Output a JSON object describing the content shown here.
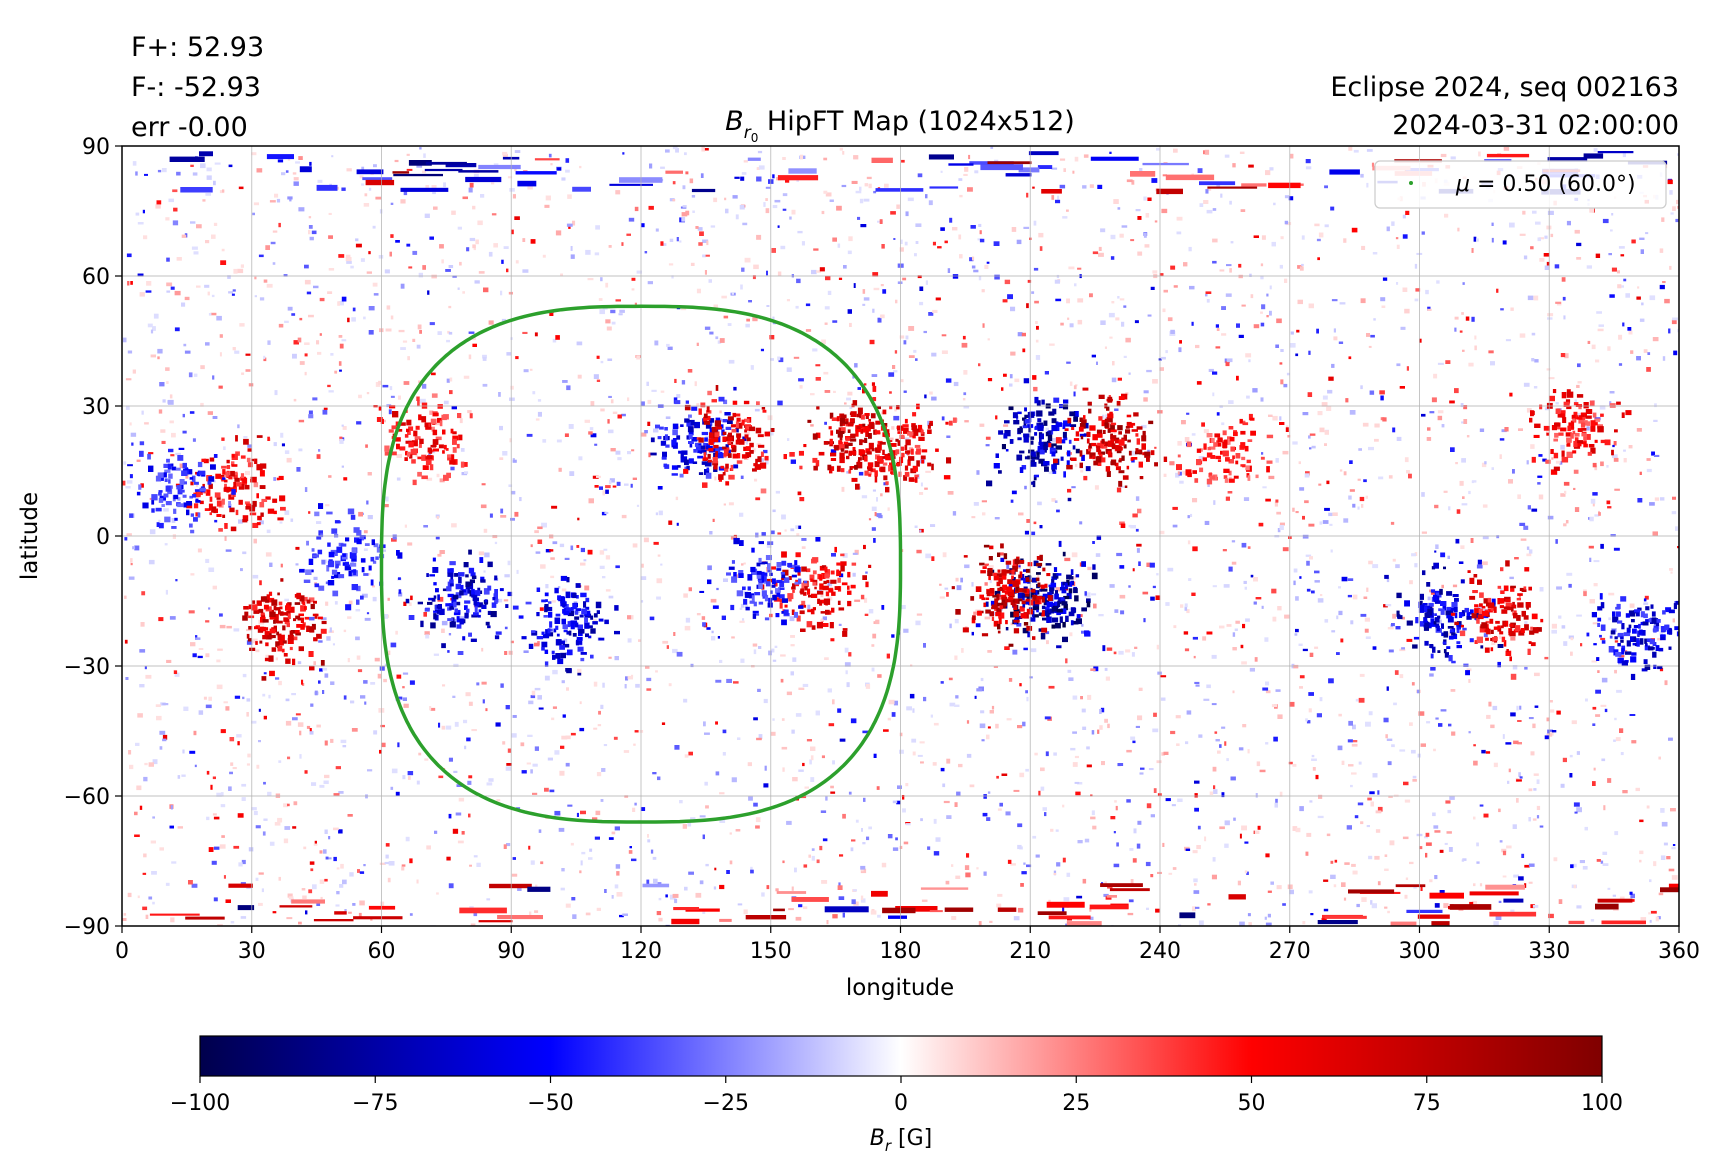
{
  "header": {
    "flux_pos": "F+: 52.93",
    "flux_neg": "F-: -52.93",
    "error": "err -0.00",
    "event": "Eclipse 2024, seq 002163",
    "timestamp": "2024-03-31 02:00:00"
  },
  "chart_data": {
    "type": "heatmap",
    "title": {
      "symbol": "B",
      "subscript": "r",
      "subsubscript": "0",
      "text": " HipFT Map (1024x512)"
    },
    "xlabel": "longitude",
    "ylabel": "latitude",
    "xlim": [
      0,
      360
    ],
    "ylim": [
      -90,
      90
    ],
    "x_ticks": [
      0,
      30,
      60,
      90,
      120,
      150,
      180,
      210,
      240,
      270,
      300,
      330,
      360
    ],
    "y_ticks": [
      90,
      60,
      30,
      0,
      -30,
      -60,
      -90
    ],
    "y_tick_labels": [
      "90",
      "60",
      "30",
      "0",
      "−30",
      "−60",
      "−90"
    ],
    "grid": true,
    "colormap": "seismic",
    "colormap_stops": [
      "#00004c",
      "#0000ff",
      "#ffffff",
      "#ff0000",
      "#800000"
    ],
    "legend": {
      "placement": "top-right",
      "label_symbol": "μ",
      "label_text": " = 0.50 (60.0°)",
      "color": "#2ca02c"
    },
    "contour": {
      "name": "μ = 0.50 (60.0°)",
      "color": "#2ca02c",
      "lon_center": 120,
      "lat_center": -7,
      "lon_halfwidth": 60,
      "lat_top": 53,
      "lat_bottom": -66
    },
    "active_regions": [
      {
        "lon": 213,
        "lat": -13,
        "polarity": "negative",
        "strength": 100
      },
      {
        "lon": 205,
        "lat": -13,
        "polarity": "positive",
        "strength": 95
      },
      {
        "lon": 212,
        "lat": 22,
        "polarity": "negative",
        "strength": 90
      },
      {
        "lon": 228,
        "lat": 22,
        "polarity": "positive",
        "strength": 90
      },
      {
        "lon": 36,
        "lat": -20,
        "polarity": "positive",
        "strength": 85
      },
      {
        "lon": 25,
        "lat": 12,
        "polarity": "positive",
        "strength": 70
      },
      {
        "lon": 12,
        "lat": 12,
        "polarity": "negative",
        "strength": 55
      },
      {
        "lon": 78,
        "lat": -14,
        "polarity": "negative",
        "strength": 80
      },
      {
        "lon": 102,
        "lat": -20,
        "polarity": "negative",
        "strength": 75
      },
      {
        "lon": 133,
        "lat": 22,
        "polarity": "negative",
        "strength": 70
      },
      {
        "lon": 140,
        "lat": 22,
        "polarity": "positive",
        "strength": 75
      },
      {
        "lon": 168,
        "lat": 23,
        "polarity": "positive",
        "strength": 85
      },
      {
        "lon": 180,
        "lat": 20,
        "polarity": "positive",
        "strength": 70
      },
      {
        "lon": 160,
        "lat": -12,
        "polarity": "positive",
        "strength": 70
      },
      {
        "lon": 148,
        "lat": -10,
        "polarity": "negative",
        "strength": 60
      },
      {
        "lon": 305,
        "lat": -18,
        "polarity": "negative",
        "strength": 80
      },
      {
        "lon": 318,
        "lat": -18,
        "polarity": "positive",
        "strength": 75
      },
      {
        "lon": 350,
        "lat": -22,
        "polarity": "negative",
        "strength": 75
      },
      {
        "lon": 335,
        "lat": 25,
        "polarity": "positive",
        "strength": 65
      },
      {
        "lon": 70,
        "lat": 22,
        "polarity": "positive",
        "strength": 65
      },
      {
        "lon": 52,
        "lat": -5,
        "polarity": "negative",
        "strength": 55
      },
      {
        "lon": 255,
        "lat": 20,
        "polarity": "positive",
        "strength": 55
      }
    ],
    "colorbar": {
      "label_symbol": "B",
      "label_subscript": "r",
      "label_unit": " [G]",
      "ticks": [
        -100,
        -75,
        -50,
        -25,
        0,
        25,
        50,
        75,
        100
      ],
      "tick_labels": [
        "−100",
        "−75",
        "−50",
        "−25",
        "0",
        "25",
        "50",
        "75",
        "100"
      ],
      "range": [
        -100,
        100
      ]
    }
  }
}
